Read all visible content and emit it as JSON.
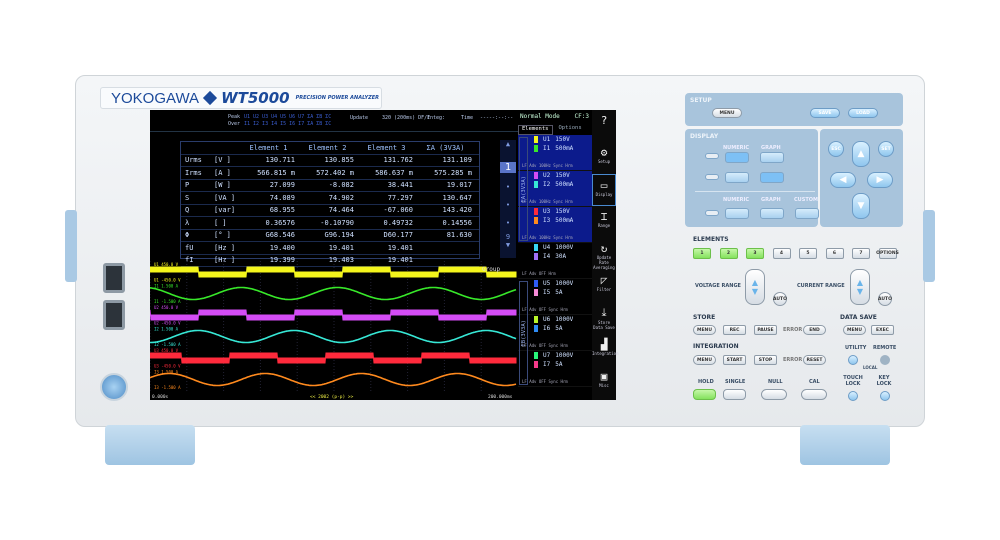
{
  "brand": {
    "maker": "YOKOGAWA",
    "model": "WT5000",
    "subtitle": "PRECISION POWER ANALYZER"
  },
  "screen": {
    "peak_label": "Peak",
    "over_label": "Over",
    "peak_channels": "U1 U2 U3 U4 U5 U6 U7 ΣA ΣB ΣC",
    "over_channels": "I1 I2 I3 I4 I5 I6 I7 ΣA ΣB ΣC",
    "update_label": "Update",
    "update_value": "320 (200ms) DF/F",
    "integ_label": "Integ:",
    "time_label": "Time",
    "time_value": "-----:--:--",
    "mode": "Normal Mode",
    "cf": "CF:3",
    "table": {
      "headers": [
        "",
        "",
        "Element 1",
        "Element 2",
        "Element 3",
        "ΣA (3V3A)"
      ],
      "rows": [
        [
          "Urms",
          "[V  ]",
          "130.711",
          "130.855",
          "131.762",
          "131.109"
        ],
        [
          "Irms",
          "[A  ]",
          "566.815 m",
          "572.402 m",
          "586.637 m",
          "575.285 m"
        ],
        [
          "P",
          "[W  ]",
          "27.099",
          "-8.082",
          "38.441",
          "19.017"
        ],
        [
          "S",
          "[VA ]",
          "74.089",
          "74.902",
          "77.297",
          "130.647"
        ],
        [
          "Q",
          "[var]",
          "68.955",
          "74.464",
          "-67.060",
          "143.420"
        ],
        [
          "λ",
          "[   ]",
          "0.36576",
          "-0.10790",
          "0.49732",
          "0.14556"
        ],
        [
          "Φ",
          "[°  ]",
          "G68.546",
          "G96.194",
          "D60.177",
          "81.630"
        ],
        [
          "fU",
          "[Hz ]",
          "19.400",
          "19.401",
          "19.401",
          ""
        ],
        [
          "fI",
          "[Hz ]",
          "19.399",
          "19.403",
          "19.401",
          ""
        ]
      ]
    },
    "pager": {
      "up": "▲",
      "page": "1",
      "dots": [
        "•",
        "•",
        "•"
      ],
      "last": "9",
      "down": "▼"
    },
    "wave": {
      "group_label": "Group",
      "start_time": "0.000s",
      "end_time": "200.000ms",
      "center_label": "<< 2002 (p-p) >>",
      "traces": [
        {
          "name": "U1",
          "top": "450.0 V",
          "bottom": "-450.0 V",
          "color": "#f4f51c",
          "shape": "square",
          "phase": 0
        },
        {
          "name": "I1",
          "top": "1.500 A",
          "bottom": "-1.500 A",
          "color": "#38e82a",
          "shape": "sine",
          "phase": 0.3
        },
        {
          "name": "U2",
          "top": "450.0 V",
          "bottom": "-450.0 V",
          "color": "#d44cf5",
          "shape": "square",
          "phase": 0.5
        },
        {
          "name": "I2",
          "top": "1.500 A",
          "bottom": "-1.500 A",
          "color": "#37e8d6",
          "shape": "sine",
          "phase": 0.75
        },
        {
          "name": "U3",
          "top": "450.0 V",
          "bottom": "-450.0 V",
          "color": "#ff2a3c",
          "shape": "square",
          "phase": 0.17
        },
        {
          "name": "I3",
          "top": "1.500 A",
          "bottom": "-1.500 A",
          "color": "#ff8a1e",
          "shape": "sine",
          "phase": 0.05
        }
      ]
    },
    "elements_tab": "Elements",
    "options_tab": "Options",
    "elements": [
      {
        "u": "U1",
        "ur": "150V",
        "i": "I1",
        "ir": "500mA",
        "uc": "#f4f51c",
        "ic": "#38e82a",
        "lf": "LF Adv 100Hz  Sync Hrm",
        "sel": true
      },
      {
        "u": "U2",
        "ur": "150V",
        "i": "I2",
        "ir": "500mA",
        "uc": "#d44cf5",
        "ic": "#37e8d6",
        "lf": "LF Adv 100Hz  Sync Hrm",
        "sel": true
      },
      {
        "u": "U3",
        "ur": "150V",
        "i": "I3",
        "ir": "500mA",
        "uc": "#ff2a3c",
        "ic": "#ff8a1e",
        "lf": "LF Adv 100Hz  Sync Hrm",
        "sel": true
      },
      {
        "u": "U4",
        "ur": "1000V",
        "i": "I4",
        "ir": "30A",
        "uc": "#37d6f5",
        "ic": "#a070f5",
        "lf": "LF Adv OFF  Hrm",
        "sel": false
      },
      {
        "u": "U5",
        "ur": "1000V",
        "i": "I5",
        "ir": "5A",
        "uc": "#2f5cf5",
        "ic": "#f58ad6",
        "lf": "LF Adv OFF  Sync Hrm",
        "sel": false
      },
      {
        "u": "U6",
        "ur": "1000V",
        "i": "I6",
        "ir": "5A",
        "uc": "#b8f52a",
        "ic": "#2f8cf5",
        "lf": "LF Adv OFF  Sync Hrm",
        "sel": false
      },
      {
        "u": "U7",
        "ur": "1000V",
        "i": "I7",
        "ir": "5A",
        "uc": "#28f57a",
        "ic": "#f53a8a",
        "lf": "LF Adv OFF  Sync Hrm",
        "sel": false
      }
    ],
    "group_labels": [
      "ΣA(3V3A)",
      "ΣB(3V3A)"
    ],
    "side_menu": [
      {
        "icon": "?",
        "label": ""
      },
      {
        "icon": "⚙",
        "label": "Setup"
      },
      {
        "icon": "▭",
        "label": "Display"
      },
      {
        "icon": "⌶",
        "label": "Range"
      },
      {
        "icon": "↻",
        "label": "Update Rate Averaging"
      },
      {
        "icon": "◸",
        "label": "Filter"
      },
      {
        "icon": "⤓",
        "label": "Store Data Save"
      },
      {
        "icon": "▟",
        "label": "Integration"
      },
      {
        "icon": "▣",
        "label": "Misc"
      }
    ]
  },
  "panel": {
    "setup": {
      "title": "SETUP",
      "menu": "MENU",
      "save": "SAVE",
      "load": "LOAD"
    },
    "display": {
      "title": "DISPLAY",
      "numeric": "NUMERIC",
      "graph": "GRAPH",
      "custom": "CUSTOM"
    },
    "nav": {
      "esc": "ESC",
      "set": "SET"
    },
    "elements": {
      "title": "ELEMENTS",
      "keys": [
        "1",
        "2",
        "3",
        "4",
        "5",
        "6",
        "7",
        "OPTIONS"
      ],
      "active": [
        true,
        true,
        true,
        false,
        false,
        false,
        false,
        false
      ]
    },
    "voltage_range": "VOLTAGE RANGE",
    "current_range": "CURRENT RANGE",
    "auto": "AUTO",
    "store": {
      "title": "STORE",
      "menu": "MENU",
      "rec": "REC",
      "pause": "PAUSE",
      "error": "ERROR",
      "end": "END"
    },
    "data_save": {
      "title": "DATA SAVE",
      "menu": "MENU",
      "exec": "EXEC"
    },
    "integration": {
      "title": "INTEGRATION",
      "menu": "MENU",
      "start": "START",
      "stop": "STOP",
      "error": "ERROR",
      "reset": "RESET"
    },
    "utility": "UTILITY",
    "remote": "REMOTE",
    "local": "LOCAL",
    "hold": "HOLD",
    "single": "SINGLE",
    "null": "NULL",
    "cal": "CAL",
    "touch_lock": "TOUCH LOCK",
    "key_lock": "KEY LOCK"
  }
}
